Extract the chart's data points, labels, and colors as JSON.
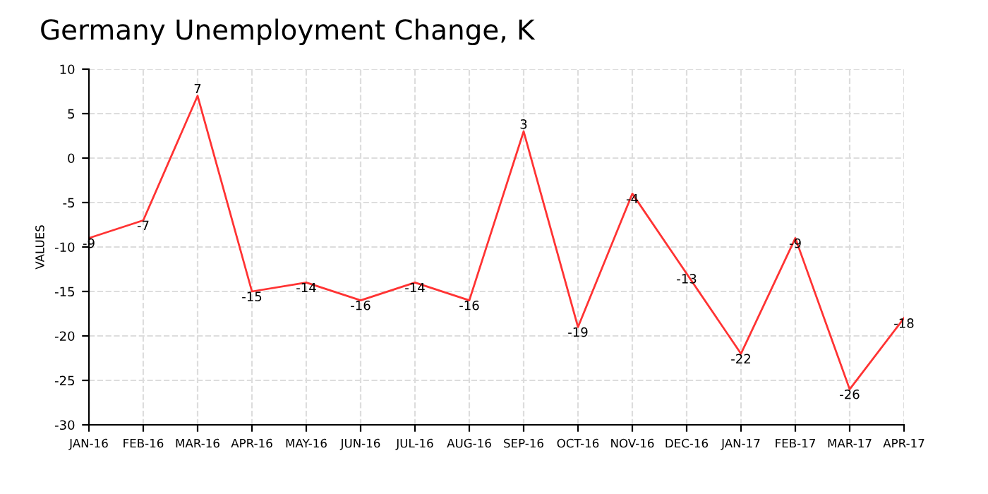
{
  "chart_data": {
    "type": "line",
    "title": "Germany Unemployment Change, K",
    "ylabel": "VALUES",
    "categories": [
      "JAN-16",
      "FEB-16",
      "MAR-16",
      "APR-16",
      "MAY-16",
      "JUN-16",
      "JUL-16",
      "AUG-16",
      "SEP-16",
      "OCT-16",
      "NOV-16",
      "DEC-16",
      "JAN-17",
      "FEB-17",
      "MAR-17",
      "APR-17"
    ],
    "series": [
      {
        "color": "#ff3333",
        "values": [
          -9,
          -7,
          7,
          -15,
          -14,
          -16,
          -14,
          -16,
          3,
          -19,
          -4,
          -13,
          -22,
          -9,
          -26,
          -18
        ]
      }
    ],
    "ylim": [
      -30,
      10
    ],
    "yticks": [
      -30,
      -25,
      -20,
      -15,
      -10,
      -5,
      0,
      5,
      10
    ],
    "grid": true,
    "data_labels": true,
    "line_style": "solid",
    "marker": "none"
  }
}
